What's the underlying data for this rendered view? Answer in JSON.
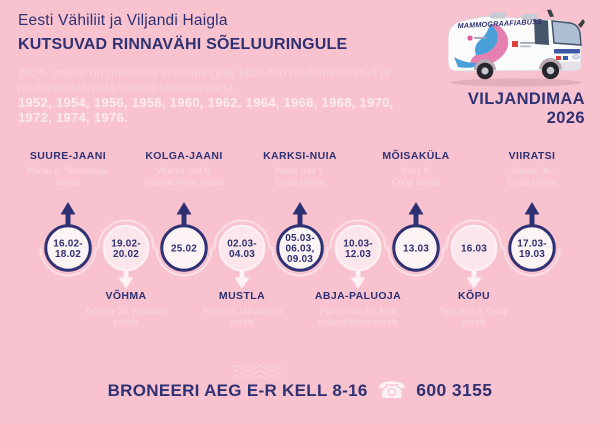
{
  "colors": {
    "background": "#f8c3cf",
    "navy": "#2e3173",
    "light_pink_text": "#fad6df",
    "near_white_text": "#fdecef",
    "circle_fill_navy_bordered": "#fdf4f6",
    "circle_fill_white": "#fbe6eb",
    "connector_line": "#fbdce4",
    "bus_pink": "#e57fb0",
    "bus_blue": "#49a0d8"
  },
  "header": {
    "organizers": "Eesti Vähiliit ja Viljandi Haigla",
    "title": "KUTSUVAD RINNAVÄHI SÕELUURINGULE"
  },
  "intro": {
    "line1": "2026. aastal on rinnavähi sõeluuringule kutsutud ravikindlustatud ja",
    "line2": "ravikindlustamata naised sünniaastaga",
    "years_line1": "1952, 1954, 1956, 1958, 1960, 1962, 1964, 1966, 1968, 1970,",
    "years_line2": "1972, 1974, 1976."
  },
  "region": {
    "name": "VILJANDIMAA",
    "year": "2026"
  },
  "bus": {
    "label": "MAMMOGRAAFIABUSS"
  },
  "timeline": {
    "stops": [
      {
        "name": "SUURE-JAANI",
        "address": "Pärnu 4, Tervisekoja\nparkla",
        "dates": [
          "16.02-",
          "18.02"
        ],
        "side": "top"
      },
      {
        "name": "VÕHMA",
        "address": "Tallinna 26, Konsumi\nparkla",
        "dates": [
          "19.02-",
          "20.02"
        ],
        "side": "bottom"
      },
      {
        "name": "KOLGA-JAANI",
        "address": "Viljandi mnt.6,\nraamatukogu parkla",
        "dates": [
          "25.02"
        ],
        "side": "top"
      },
      {
        "name": "MUSTLA",
        "address": "Posti 52, rahvamaja\nparkla",
        "dates": [
          "02.03-",
          "04.03"
        ],
        "side": "bottom"
      },
      {
        "name": "KARKSI-NUIA",
        "address": "Pärnu mnt 1,\nCoop parkla",
        "dates": [
          "05.03-",
          "06.03,",
          "09.03"
        ],
        "side": "top"
      },
      {
        "name": "ABJA-PALUOJA",
        "address": "Pärnu mnt 30, Abja\nvallavalitsuse parkla",
        "dates": [
          "10.03-",
          "12.03"
        ],
        "side": "bottom"
      },
      {
        "name": "MÕISAKÜLA",
        "address": "Kesk 8,\nCoop parkla",
        "dates": [
          "13.03"
        ],
        "side": "top"
      },
      {
        "name": "KÕPU",
        "address": "Tipu mnt 3, Coop\nparkla",
        "dates": [
          "16.03"
        ],
        "side": "bottom"
      },
      {
        "name": "VIIRATSI",
        "address": "Sakala 3b,\nCoop parkla",
        "dates": [
          "17.03-",
          "19.03"
        ],
        "side": "top"
      }
    ]
  },
  "footer": {
    "cta": "BRONEERI AEG E-R KELL 8-16",
    "phone_icon": "☎",
    "phone": "600 3155"
  }
}
